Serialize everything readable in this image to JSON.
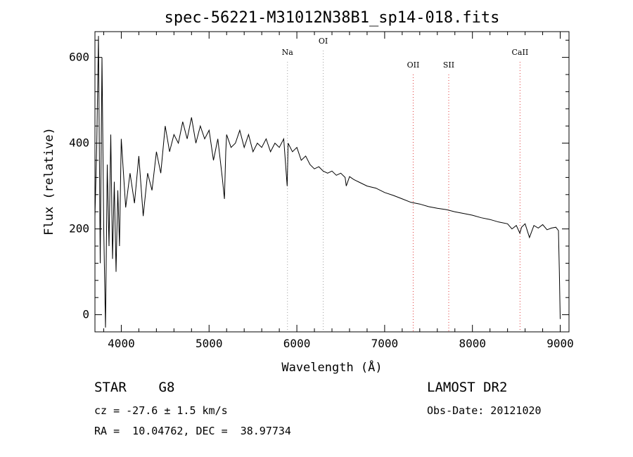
{
  "chart_data": {
    "type": "line",
    "title": "spec-56221-M31012N38B1_sp14-018.fits",
    "xlabel": "Wavelength (Å)",
    "ylabel": "Flux (relative)",
    "xlim": [
      3700,
      9100
    ],
    "ylim": [
      -40,
      660
    ],
    "xticks": [
      "4000",
      "5000",
      "6000",
      "7000",
      "8000",
      "9000"
    ],
    "yticks": [
      "0",
      "200",
      "400",
      "600"
    ],
    "grid": false,
    "series": [
      {
        "x": [
          3700,
          3720,
          3740,
          3760,
          3780,
          3800,
          3820,
          3840,
          3860,
          3880,
          3900,
          3920,
          3940,
          3960,
          3980,
          4000,
          4050,
          4100,
          4150,
          4200,
          4250,
          4300,
          4350,
          4400,
          4450,
          4500,
          4550,
          4600,
          4650,
          4700,
          4750,
          4800,
          4850,
          4900,
          4950,
          5000,
          5050,
          5100,
          5150,
          5175,
          5190,
          5200,
          5250,
          5300,
          5350,
          5400,
          5450,
          5500,
          5550,
          5600,
          5650,
          5700,
          5750,
          5800,
          5850,
          5890,
          5895,
          5900,
          5950,
          6000,
          6050,
          6100,
          6150,
          6200,
          6250,
          6300,
          6350,
          6400,
          6450,
          6500,
          6550,
          6563,
          6600,
          6650,
          6700,
          6800,
          6900,
          7000,
          7100,
          7200,
          7300,
          7400,
          7500,
          7600,
          7700,
          7800,
          7900,
          8000,
          8100,
          8200,
          8300,
          8400,
          8450,
          8500,
          8540,
          8560,
          8600,
          8650,
          8700,
          8750,
          8800,
          8850,
          8900,
          8950,
          8980,
          8990,
          9000
        ],
        "values": [
          230,
          390,
          650,
          120,
          600,
          200,
          -30,
          350,
          160,
          420,
          130,
          310,
          100,
          290,
          160,
          410,
          250,
          330,
          260,
          370,
          230,
          330,
          290,
          380,
          330,
          440,
          380,
          420,
          400,
          450,
          410,
          460,
          400,
          440,
          410,
          430,
          360,
          410,
          320,
          270,
          380,
          420,
          390,
          400,
          430,
          390,
          420,
          380,
          400,
          390,
          410,
          380,
          400,
          390,
          410,
          300,
          350,
          400,
          380,
          390,
          360,
          370,
          350,
          340,
          345,
          335,
          330,
          335,
          325,
          330,
          320,
          300,
          322,
          315,
          310,
          300,
          295,
          285,
          278,
          270,
          262,
          258,
          252,
          248,
          245,
          240,
          236,
          232,
          226,
          222,
          216,
          212,
          200,
          208,
          190,
          204,
          212,
          180,
          208,
          202,
          210,
          198,
          202,
          204,
          196,
          100,
          -10
        ]
      }
    ],
    "lines": [
      {
        "label": "Na",
        "x": 5893,
        "color": "#a0a0a0"
      },
      {
        "label": "OI",
        "x": 6300,
        "color": "#a0a0a0"
      },
      {
        "label": "OII",
        "x": 7325,
        "color": "#e03a3a"
      },
      {
        "label": "SII",
        "x": 7730,
        "color": "#e03a3a"
      },
      {
        "label": "CaII",
        "x": 8542,
        "color": "#e03a3a"
      }
    ]
  },
  "info": {
    "type_label": "STAR    G8",
    "survey": "LAMOST DR2",
    "cz": "cz = -27.6 ± 1.5 km/s",
    "obs_date": "Obs-Date: 20121020",
    "coords": "RA =  10.04762, DEC =  38.97734"
  }
}
